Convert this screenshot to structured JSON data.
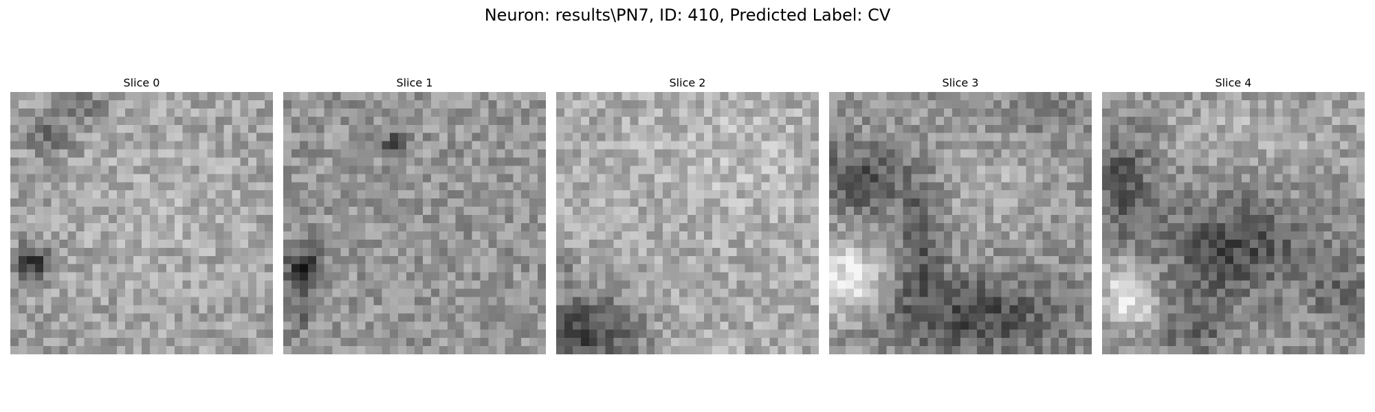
{
  "figure": {
    "title": "Neuron: results\\PN7, ID: 410, Predicted Label: CV",
    "colormap": "gray"
  },
  "slices": [
    {
      "title": "Slice 0"
    },
    {
      "title": "Slice 1"
    },
    {
      "title": "Slice 2"
    },
    {
      "title": "Slice 3"
    },
    {
      "title": "Slice 4"
    }
  ]
}
